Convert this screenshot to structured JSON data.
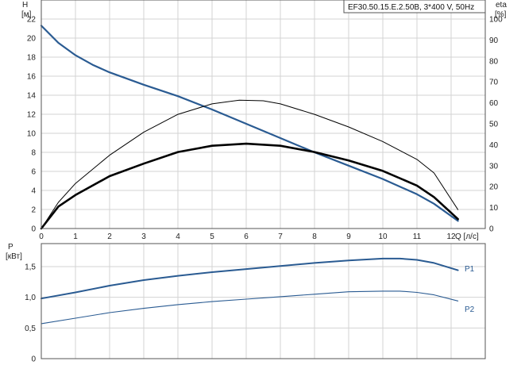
{
  "chart_data": [
    {
      "type": "line",
      "title": "EF30.50.15.E.2.50B, 3*400 V, 50Hz",
      "xlabel": "Q [л/с]",
      "ylabel_left": [
        "H",
        "[м]"
      ],
      "ylabel_right": [
        "eta",
        "[%]"
      ],
      "xlim": [
        0,
        13
      ],
      "ylim": [
        0,
        24
      ],
      "ylim_right": [
        0,
        109.09
      ],
      "x_ticks": [
        "0",
        "1",
        "2",
        "3",
        "4",
        "5",
        "6",
        "7",
        "8",
        "9",
        "10",
        "11",
        "12"
      ],
      "y_ticks": [
        "0",
        "2",
        "4",
        "6",
        "8",
        "10",
        "12",
        "14",
        "16",
        "18",
        "20",
        "22"
      ],
      "y_ticks_right": [
        "0",
        "10",
        "20",
        "30",
        "40",
        "50",
        "60",
        "70",
        "80",
        "90",
        "100"
      ],
      "grid": true,
      "series": [
        {
          "axis": "left",
          "color": "#2a5b92",
          "x": [
            0,
            0.5,
            1,
            1.5,
            2,
            3,
            4,
            5,
            6,
            7,
            8,
            9,
            10,
            11,
            11.5,
            12.2
          ],
          "y": [
            21.3,
            19.5,
            18.2,
            17.2,
            16.4,
            15.1,
            13.9,
            12.5,
            11.0,
            9.5,
            8.0,
            6.6,
            5.2,
            3.6,
            2.6,
            0.8
          ]
        },
        {
          "axis": "right",
          "color": "#000000",
          "x": [
            0,
            0.5,
            1,
            2,
            3,
            4,
            5,
            6,
            7,
            8,
            9,
            10,
            11,
            11.5,
            12.2
          ],
          "y": [
            0,
            10.5,
            16,
            25,
            31,
            36.5,
            39.5,
            40.5,
            39.5,
            36.5,
            32.5,
            27.5,
            20.5,
            15,
            4.5
          ]
        },
        {
          "axis": "right",
          "color": "#000000",
          "x": [
            0,
            0.5,
            1,
            2,
            3,
            4,
            5,
            5.8,
            6.5,
            7,
            8,
            9,
            10,
            11,
            11.5,
            12.2
          ],
          "y": [
            0,
            12.5,
            21.5,
            35,
            46,
            54.5,
            59.5,
            61.3,
            61,
            59.5,
            54.5,
            48.5,
            41.5,
            33,
            26.5,
            9
          ]
        }
      ]
    },
    {
      "type": "line",
      "xlim": [
        0,
        13
      ],
      "ylim": [
        0,
        1.875
      ],
      "ylabel": [
        "P",
        "[кВт]"
      ],
      "y_ticks": [
        "0",
        "0,5",
        "1,0",
        "1,5"
      ],
      "grid": true,
      "series": [
        {
          "name": "P1",
          "color": "#2a5b92",
          "x": [
            0,
            1,
            2,
            3,
            4,
            5,
            6,
            7,
            8,
            9,
            10,
            10.5,
            11,
            11.5,
            12.2
          ],
          "y": [
            0.98,
            1.08,
            1.19,
            1.28,
            1.35,
            1.41,
            1.46,
            1.51,
            1.56,
            1.6,
            1.63,
            1.63,
            1.61,
            1.56,
            1.44
          ]
        },
        {
          "name": "P2",
          "color": "#2a5b92",
          "x": [
            0,
            1,
            2,
            3,
            4,
            5,
            6,
            7,
            8,
            9,
            10,
            10.5,
            11,
            11.5,
            12.2
          ],
          "y": [
            0.57,
            0.66,
            0.75,
            0.82,
            0.88,
            0.93,
            0.97,
            1.01,
            1.05,
            1.09,
            1.1,
            1.1,
            1.08,
            1.04,
            0.94
          ]
        }
      ]
    }
  ]
}
